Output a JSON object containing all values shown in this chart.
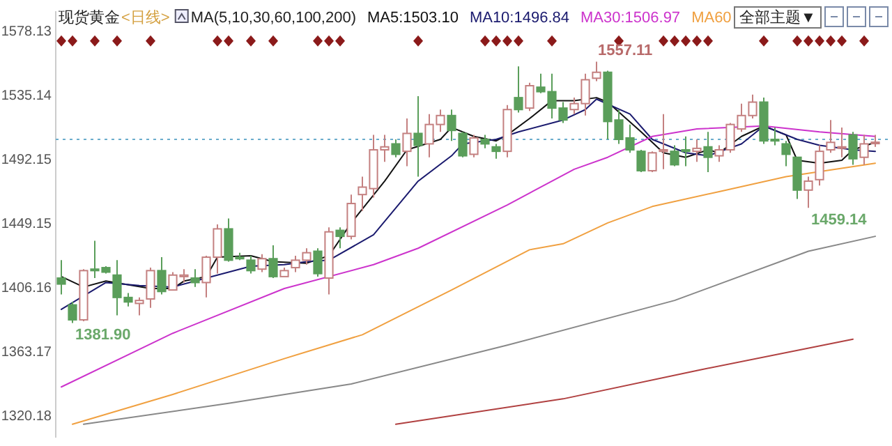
{
  "chart_data": {
    "type": "candlestick",
    "title": "现货黄金",
    "subtitle": "<日线>",
    "categories": [
      null,
      null,
      null,
      null,
      null,
      null,
      null,
      null,
      null,
      null,
      null,
      null,
      null,
      null,
      null,
      null,
      null,
      null,
      null,
      null,
      null,
      null,
      null,
      null,
      null,
      null,
      null,
      null,
      null,
      null,
      null,
      null,
      null,
      null,
      null,
      null,
      null,
      null,
      null,
      null,
      null,
      null,
      null,
      null,
      null,
      null,
      null,
      null,
      null,
      null,
      null,
      null,
      null,
      null,
      null,
      null,
      null,
      null,
      null,
      null,
      null,
      null,
      null,
      null,
      null,
      null,
      null,
      null,
      null,
      null,
      null,
      null,
      null,
      null
    ],
    "ohlc": [
      [
        1412,
        1424,
        1401,
        1408
      ],
      [
        1394,
        1396,
        1381.9,
        1384
      ],
      [
        1384,
        1418,
        1383,
        1417
      ],
      [
        1418,
        1437,
        1412,
        1417
      ],
      [
        1419,
        1420,
        1415,
        1416
      ],
      [
        1414,
        1424,
        1387,
        1399
      ],
      [
        1399,
        1402,
        1393,
        1396
      ],
      [
        1395,
        1399,
        1387,
        1397
      ],
      [
        1398,
        1419,
        1392,
        1417
      ],
      [
        1417,
        1426,
        1401,
        1403
      ],
      [
        1404,
        1416,
        1404,
        1414
      ],
      [
        1413,
        1418,
        1409,
        1414
      ],
      [
        1412,
        1418,
        1406,
        1409
      ],
      [
        1409,
        1427,
        1399,
        1426
      ],
      [
        1426,
        1448,
        1415,
        1445
      ],
      [
        1445,
        1452,
        1423,
        1424
      ],
      [
        1426,
        1429,
        1424,
        1425
      ],
      [
        1424,
        1427,
        1415,
        1417
      ],
      [
        1418,
        1428,
        1416,
        1425
      ],
      [
        1425,
        1434,
        1412,
        1413
      ],
      [
        1413,
        1419,
        1413,
        1417
      ],
      [
        1419,
        1427,
        1416,
        1424
      ],
      [
        1424,
        1432,
        1421,
        1429
      ],
      [
        1430,
        1432,
        1413,
        1415
      ],
      [
        1412,
        1446,
        1401,
        1443
      ],
      [
        1444,
        1446,
        1432,
        1440
      ],
      [
        1440,
        1468,
        1438,
        1462
      ],
      [
        1468,
        1480,
        1457,
        1473
      ],
      [
        1472,
        1508,
        1466,
        1498
      ],
      [
        1498,
        1508,
        1490,
        1500
      ],
      [
        1502,
        1505,
        1493,
        1495
      ],
      [
        1497,
        1519,
        1487,
        1509
      ],
      [
        1509,
        1534,
        1480,
        1501
      ],
      [
        1502,
        1522,
        1493,
        1515
      ],
      [
        1515,
        1525,
        1510,
        1521
      ],
      [
        1521,
        1525,
        1504,
        1511
      ],
      [
        1509,
        1510,
        1493,
        1494
      ],
      [
        1495,
        1508,
        1493,
        1506
      ],
      [
        1505,
        1508,
        1499,
        1502
      ],
      [
        1500,
        1502,
        1492,
        1497
      ],
      [
        1497,
        1528,
        1493,
        1525
      ],
      [
        1533,
        1554,
        1523,
        1525
      ],
      [
        1526,
        1543,
        1524,
        1541
      ],
      [
        1540,
        1549,
        1536,
        1537
      ],
      [
        1537,
        1549,
        1519,
        1526
      ],
      [
        1526,
        1530,
        1516,
        1518
      ],
      [
        1525,
        1533,
        1522,
        1529
      ],
      [
        1529,
        1549,
        1521,
        1545
      ],
      [
        1546,
        1557.11,
        1544,
        1550
      ],
      [
        1550,
        1551,
        1505,
        1517
      ],
      [
        1518,
        1525,
        1502,
        1505
      ],
      [
        1506,
        1515,
        1496,
        1498
      ],
      [
        1497,
        1498,
        1483,
        1484
      ],
      [
        1484,
        1497,
        1483,
        1496
      ],
      [
        1497,
        1522,
        1485,
        1498
      ],
      [
        1497,
        1501,
        1487,
        1488
      ],
      [
        1498,
        1507,
        1487,
        1497
      ],
      [
        1497,
        1505,
        1490,
        1499
      ],
      [
        1500,
        1510,
        1483,
        1493
      ],
      [
        1494,
        1501,
        1490,
        1498
      ],
      [
        1498,
        1516,
        1496,
        1515
      ],
      [
        1512,
        1529,
        1510,
        1521
      ],
      [
        1521,
        1535,
        1519,
        1530
      ],
      [
        1530,
        1533,
        1502,
        1504
      ],
      [
        1505,
        1513,
        1501,
        1504
      ],
      [
        1502,
        1504,
        1487,
        1495
      ],
      [
        1493,
        1493,
        1465,
        1471
      ],
      [
        1471,
        1480,
        1459.14,
        1477
      ],
      [
        1478,
        1501,
        1474,
        1497
      ],
      [
        1498,
        1518,
        1496,
        1503
      ],
      [
        1500,
        1513,
        1493,
        1500
      ],
      [
        1508,
        1510,
        1488,
        1492
      ],
      [
        1493,
        1508,
        1488,
        1502
      ],
      [
        1503,
        1508,
        1500,
        1503.1
      ]
    ],
    "series": [
      {
        "type": "line",
        "name": "MA5:1503.10",
        "color": "#111111",
        "values": [
          1413,
          null,
          1406,
          null,
          1410,
          null,
          null,
          null,
          1405,
          null,
          1405,
          1410,
          null,
          1413,
          1426,
          null,
          null,
          1427,
          null,
          1423,
          null,
          null,
          1422,
          null,
          1427,
          null,
          1449,
          null,
          null,
          1477,
          null,
          1498,
          null,
          null,
          1505,
          1513,
          null,
          1507,
          null,
          1504,
          1508,
          null,
          1519,
          null,
          1531,
          null,
          1531,
          null,
          1533,
          1530,
          null,
          null,
          1510,
          null,
          1496,
          null,
          1493,
          null,
          1498,
          1496,
          null,
          1507,
          null,
          1514,
          null,
          1508,
          1491,
          null,
          1489,
          null,
          1491,
          1498,
          null,
          1503
        ]
      },
      {
        "type": "line",
        "name": "MA10:1496.84",
        "color": "#1a1a6e",
        "values": [
          1391,
          null,
          null,
          null,
          1409,
          null,
          null,
          1407,
          null,
          null,
          1406,
          null,
          1410,
          1412,
          null,
          null,
          null,
          1420,
          null,
          null,
          1421,
          null,
          1423,
          null,
          1424,
          null,
          null,
          null,
          1441,
          null,
          null,
          null,
          1477,
          null,
          null,
          1494,
          1502,
          null,
          null,
          1505,
          null,
          1510,
          null,
          null,
          null,
          1518,
          null,
          1525,
          1532,
          null,
          null,
          1522,
          null,
          1505,
          null,
          null,
          1496,
          null,
          1494,
          null,
          null,
          1502,
          null,
          1514,
          null,
          null,
          1505,
          null,
          1501,
          null,
          null,
          1498,
          null,
          1497
        ]
      },
      {
        "type": "line",
        "name": "MA30:1506.97",
        "color": "#cc33cc",
        "values": [
          1339,
          null,
          null,
          null,
          null,
          null,
          null,
          null,
          null,
          null,
          1375,
          null,
          null,
          null,
          null,
          null,
          null,
          null,
          null,
          null,
          1405,
          null,
          null,
          null,
          null,
          null,
          null,
          null,
          1421,
          null,
          null,
          null,
          1432,
          null,
          null,
          null,
          null,
          null,
          null,
          null,
          1461,
          null,
          null,
          null,
          null,
          null,
          1485,
          null,
          null,
          1493,
          null,
          null,
          null,
          1507,
          null,
          null,
          null,
          1512,
          null,
          null,
          null,
          null,
          null,
          1514,
          null,
          null,
          null,
          null,
          1510,
          null,
          null,
          null,
          null,
          1507
        ]
      },
      {
        "type": "line",
        "name": "MA60",
        "color": "#f0a040",
        "values": [
          null,
          1314,
          null,
          null,
          null,
          null,
          null,
          null,
          null,
          null,
          1334,
          null,
          null,
          null,
          null,
          null,
          null,
          null,
          null,
          null,
          1358,
          null,
          null,
          null,
          null,
          null,
          null,
          1374,
          null,
          null,
          null,
          null,
          null,
          null,
          null,
          1404,
          null,
          null,
          null,
          null,
          null,
          null,
          1431,
          null,
          null,
          1435,
          null,
          null,
          null,
          1449,
          null,
          null,
          null,
          1460,
          null,
          null,
          null,
          null,
          null,
          1470,
          null,
          null,
          null,
          null,
          null,
          1480,
          null,
          null,
          null,
          null,
          null,
          null,
          null,
          1489
        ]
      },
      {
        "type": "line",
        "color": "#888888",
        "values": [
          null,
          null,
          1314,
          null,
          null,
          null,
          null,
          null,
          null,
          null,
          null,
          null,
          null,
          null,
          null,
          1328,
          null,
          null,
          null,
          null,
          null,
          null,
          null,
          null,
          null,
          null,
          1341,
          null,
          null,
          null,
          null,
          null,
          null,
          null,
          null,
          null,
          null,
          null,
          null,
          null,
          1367,
          null,
          null,
          null,
          null,
          null,
          null,
          null,
          null,
          null,
          null,
          null,
          null,
          null,
          null,
          1397,
          null,
          null,
          null,
          null,
          null,
          null,
          null,
          null,
          null,
          null,
          null,
          1430,
          null,
          null,
          null,
          null,
          null,
          1440
        ]
      },
      {
        "type": "line",
        "color": "#b04040",
        "values": [
          null,
          null,
          null,
          null,
          null,
          null,
          null,
          null,
          null,
          null,
          null,
          null,
          null,
          null,
          null,
          null,
          null,
          null,
          null,
          null,
          null,
          null,
          null,
          null,
          null,
          null,
          null,
          null,
          null,
          null,
          1314,
          null,
          null,
          null,
          null,
          null,
          null,
          null,
          null,
          null,
          null,
          null,
          null,
          null,
          null,
          1331,
          null,
          null,
          null,
          null,
          null,
          null,
          null,
          null,
          null,
          null,
          null,
          1350,
          null,
          null,
          null,
          null,
          null,
          null,
          null,
          null,
          null,
          null,
          null,
          null,
          null,
          1371,
          null,
          null
        ]
      },
      {
        "type": "scatter",
        "marker": "diamond",
        "color": "#8b1a1a",
        "values": [
          1571,
          1571,
          null,
          1571,
          null,
          1571,
          null,
          null,
          1571,
          null,
          null,
          null,
          null,
          null,
          1571,
          1571,
          null,
          1571,
          null,
          1571,
          null,
          null,
          null,
          1571,
          1571,
          1571,
          null,
          null,
          null,
          null,
          null,
          null,
          1571,
          null,
          null,
          null,
          null,
          null,
          1571,
          1571,
          1571,
          1571,
          null,
          null,
          1571,
          null,
          null,
          null,
          null,
          null,
          1571,
          null,
          null,
          null,
          1571,
          1571,
          1571,
          1571,
          1571,
          null,
          null,
          null,
          null,
          1571,
          null,
          null,
          1571,
          1571,
          1571,
          1571,
          1571,
          null,
          1571,
          null
        ]
      }
    ],
    "ylim": [
      1305,
      1591
    ],
    "yticks": [
      1320.18,
      1363.17,
      1406.16,
      1449.15,
      1492.15,
      1535.14,
      1578.13
    ],
    "ref_lines": [
      {
        "axis": "y",
        "value": 1505,
        "color": "#6aaccc",
        "line_style": "dotted"
      }
    ],
    "legend": "top",
    "annotations": [
      "MA(5,10,30,60,100,200)",
      "全部主题▼",
      "1557.11",
      "1459.14",
      "1381.90"
    ]
  }
}
